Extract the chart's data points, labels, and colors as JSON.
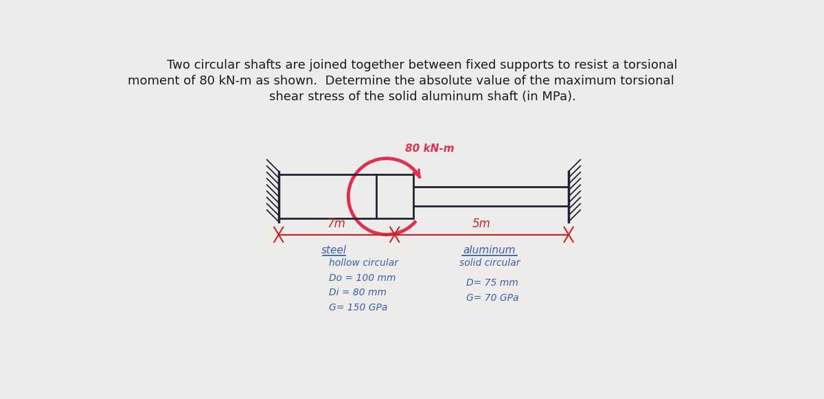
{
  "bg_color": "#eeecea",
  "title_text_line1": "Two circular shafts are joined together between fixed supports to resist a torsional",
  "title_text_line2": "moment of 80 kN-m as shown.  Determine the absolute value of the maximum torsional",
  "title_text_line3": "shear stress of the solid aluminum shaft (in MPa).",
  "title_fontsize": 13.0,
  "title_color": "#1a1a1a",
  "moment_label": "80 kN-m",
  "moment_color": "#e03050",
  "dim_color": "#cc2222",
  "shaft_color": "#222233",
  "text_color": "#3a5faa",
  "left_shaft_label": "7m",
  "right_shaft_label": "5m",
  "steel_title": "steel",
  "steel_lines": [
    "hollow circular",
    "Do = 100 mm",
    "Di = 80 mm",
    "G= 150 GPa"
  ],
  "alum_title": "aluminum",
  "alum_lines": [
    "solid circular",
    "D= 75 mm",
    "G= 70 GPa"
  ],
  "figsize": [
    12.0,
    5.81
  ],
  "dpi": 100
}
